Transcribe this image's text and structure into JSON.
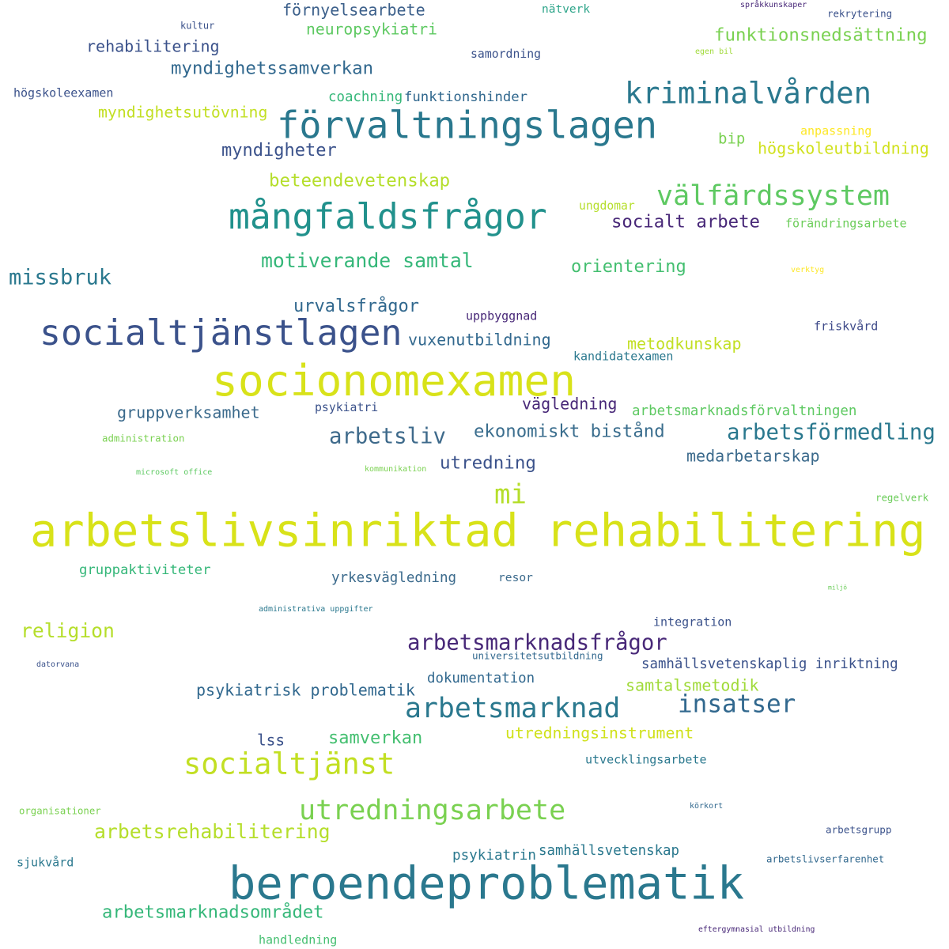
{
  "words": [
    "förnyelsearbete",
    "nätverk",
    "språkkunskaper",
    "kultur",
    "rekrytering",
    "neuropsykiatri",
    "funktionsnedsättning",
    "rehabilitering",
    "samordning",
    "egen bil",
    "myndighetssamverkan",
    "högskoleexamen",
    "coachning",
    "funktionshinder",
    "kriminalvården",
    "myndighetsutövning",
    "förvaltningslagen",
    "anpassning",
    "bip",
    "myndigheter",
    "högskoleutbildning",
    "beteendevetenskap",
    "välfärdssystem",
    "ungdomar",
    "mångfaldsfrågor",
    "socialt arbete",
    "förändringsarbete",
    "motiverande samtal",
    "orientering",
    "verktyg",
    "missbruk",
    "urvalsfrågor",
    "uppbyggnad",
    "friskvård",
    "socialtjänstlagen",
    "vuxenutbildning",
    "metodkunskap",
    "kandidatexamen",
    "socionomexamen",
    "vägledning",
    "psykiatri",
    "arbetsmarknadsförvaltningen",
    "gruppverksamhet",
    "ekonomiskt bistånd",
    "arbetsförmedling",
    "administration",
    "arbetsliv",
    "utredning",
    "medarbetarskap",
    "microsoft office",
    "kommunikation",
    "mi",
    "regelverk",
    "gruppaktiviteter",
    "yrkesvägledning",
    "resor",
    "miljö",
    "administrativa uppgifter",
    "integration",
    "religion",
    "arbetsmarknadsfrågor",
    "universitetsutbildning",
    "datorvana",
    "samhällsvetenskaplig inriktning",
    "dokumentation",
    "psykiatrisk problematik",
    "samtalsmetodik",
    "arbetsmarknad",
    "insatser",
    "lss",
    "samverkan",
    "utredningsinstrument",
    "socialtjänst",
    "utvecklingsarbete",
    "organisationer",
    "körkort",
    "utredningsarbete",
    "arbetsrehabilitering",
    "arbetsgrupp",
    "psykiatrin",
    "samhällsvetenskap",
    "arbetslivserfarenhet",
    "sjukvård",
    "beroendeproblematik",
    "arbetsmarknadsområdet",
    "eftergymnasial utbildning",
    "handledning",
    "arbetslivsinriktad rehabilitering"
  ]
}
